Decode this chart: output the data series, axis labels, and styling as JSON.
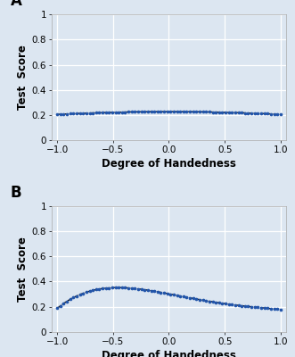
{
  "panel_A_label": "A",
  "panel_B_label": "B",
  "xlabel": "Degree of Handedness",
  "ylabel": "Test  Score",
  "xlim": [
    -1.05,
    1.05
  ],
  "ylim": [
    0,
    1.0
  ],
  "xticks": [
    -1,
    -0.5,
    0,
    0.5,
    1
  ],
  "yticks": [
    0,
    0.2,
    0.4,
    0.6,
    0.8,
    1
  ],
  "ytick_labels": [
    "0",
    "0.2",
    "0.4",
    "0.6",
    "0.8",
    "1"
  ],
  "dot_color": "#2255aa",
  "line_color": "#111111",
  "bg_color": "#dce6f1",
  "plot_bg_color": "#dce6f1",
  "grid_color": "#ffffff",
  "spine_color": "#aaaaaa",
  "panel_A_coeffs": [
    -0.022,
    0.0,
    0.228
  ],
  "panel_B_x_pts": [
    -1.0,
    -0.75,
    -0.55,
    -0.25,
    0.0,
    0.3,
    0.6,
    1.0
  ],
  "panel_B_y_pts": [
    0.19,
    0.305,
    0.355,
    0.345,
    0.295,
    0.255,
    0.215,
    0.178
  ],
  "dot_size": 7,
  "line_width": 1.0,
  "tick_fontsize": 7.5,
  "label_fontsize": 8.5,
  "panel_label_fontsize": 12
}
